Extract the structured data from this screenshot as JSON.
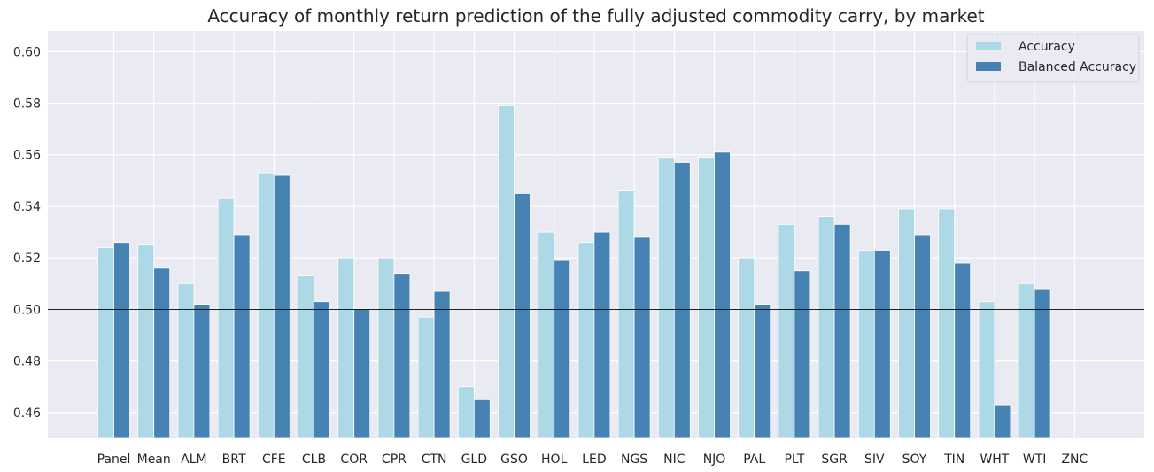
{
  "chart_data": {
    "type": "bar",
    "title": "Accuracy of monthly return prediction of the fully adjusted commodity carry, by market",
    "xlabel": "",
    "ylabel": "",
    "ylim": [
      0.45,
      0.608
    ],
    "yticks": [
      "0.46",
      "0.48",
      "0.50",
      "0.52",
      "0.54",
      "0.56",
      "0.58",
      "0.60"
    ],
    "reference_line": 0.5,
    "grid": true,
    "legend_position": "top-right",
    "categories": [
      "Panel",
      "Mean",
      "ALM",
      "BRT",
      "CFE",
      "CLB",
      "COR",
      "CPR",
      "CTN",
      "GLD",
      "GSO",
      "HOL",
      "LED",
      "NGS",
      "NIC",
      "NJO",
      "PAL",
      "PLT",
      "SGR",
      "SIV",
      "SOY",
      "TIN",
      "WHT",
      "WTI",
      "ZNC"
    ],
    "series": [
      {
        "name": "Accuracy",
        "color": "#add8e6",
        "values": [
          0.524,
          0.525,
          0.51,
          0.543,
          0.553,
          0.513,
          0.52,
          0.52,
          0.497,
          0.47,
          0.579,
          0.53,
          0.526,
          0.546,
          0.559,
          0.559,
          0.52,
          0.533,
          0.536,
          0.523,
          0.539,
          0.539,
          0.503,
          0.51,
          null
        ]
      },
      {
        "name": "Balanced Accuracy",
        "color": "#4682b4",
        "values": [
          0.526,
          0.516,
          0.502,
          0.529,
          0.552,
          0.503,
          0.5,
          0.514,
          0.507,
          0.465,
          0.545,
          0.519,
          0.53,
          0.528,
          0.557,
          0.561,
          0.502,
          0.515,
          0.533,
          0.523,
          0.529,
          0.518,
          0.463,
          0.508,
          null
        ]
      }
    ]
  }
}
